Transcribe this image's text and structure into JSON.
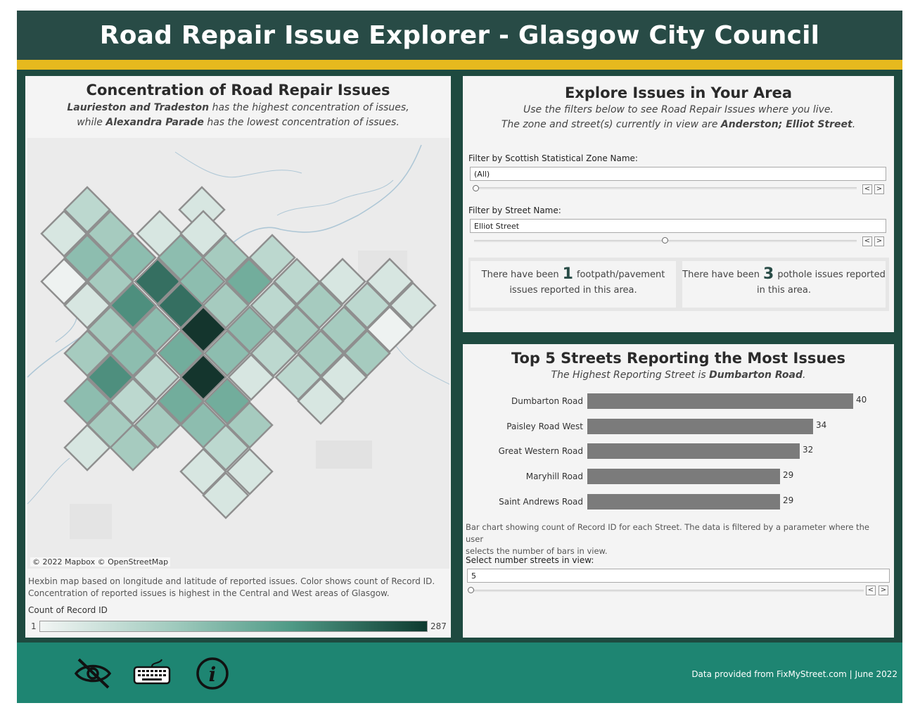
{
  "header": {
    "title": "Road Repair Issue Explorer - Glasgow City Council"
  },
  "colors": {
    "header_bg": "#284b46",
    "accent_gold": "#e6b91e",
    "frame": "#1e4a40",
    "footer": "#1e8572",
    "bar": "#7b7b7b"
  },
  "map_panel": {
    "title": "Concentration of Road Repair Issues",
    "sub_line1_bold": "Laurieston and Tradeston",
    "sub_line1_rest": " has the highest concentration of issues,",
    "sub_line2_pre": "while ",
    "sub_line2_bold": "Alexandra Parade",
    "sub_line2_rest": " has the lowest concentration of issues.",
    "attribution": "© 2022 Mapbox © OpenStreetMap",
    "caption_line1": "Hexbin map based on longitude and latitude of reported issues.  Color shows count of Record ID.",
    "caption_line2": "Concentration of reported issues is highest in the Central and West areas of Glasgow.",
    "legend_title": "Count of Record ID",
    "legend_min": "1",
    "legend_max": "287"
  },
  "explore_panel": {
    "title": "Explore Issues in Your Area",
    "sub_line1": "Use the filters below to see Road Repair Issues where you live.",
    "sub_line2_pre": "The zone and street(s) currently in view are ",
    "sub_line2_bold": "Anderston; Elliot Street",
    "sub_line2_post": ".",
    "zone_filter_label": "Filter by Scottish Statistical Zone Name:",
    "zone_filter_value": "(All)",
    "street_filter_label": "Filter by Street Name:",
    "street_filter_value": "Elliot Street",
    "kpi_footpath_pre": "There have been",
    "kpi_footpath_num": "1",
    "kpi_footpath_post1": "footpath/pavement",
    "kpi_footpath_post2": "issues reported in this area.",
    "kpi_pothole_pre": "There have been",
    "kpi_pothole_num": "3",
    "kpi_pothole_post1": "pothole issues reported",
    "kpi_pothole_post2": "in this area."
  },
  "top5_panel": {
    "title": "Top 5 Streets Reporting the Most Issues",
    "sub_pre": "The Highest Reporting Street is ",
    "sub_bold": "Dumbarton Road",
    "sub_post": ".",
    "caption_line1": "Bar chart showing count of Record ID for each Street. The data is filtered by a parameter where the user",
    "caption_line2": "selects the number of bars in view.",
    "param_label": "Select number streets in view:",
    "param_value": "5"
  },
  "chart_data": {
    "type": "bar",
    "orientation": "horizontal",
    "categories": [
      "Dumbarton Road",
      "Paisley Road West",
      "Great Western Road",
      "Maryhill Road",
      "Saint Andrews Road"
    ],
    "values": [
      40,
      34,
      32,
      29,
      29
    ],
    "title": "Top 5 Streets Reporting the Most Issues"
  },
  "footer": {
    "icons": [
      "hide-eye-icon",
      "keyboard-icon",
      "info-icon"
    ],
    "credit": "Data provided from FixMyStreet.com | June 2022"
  }
}
